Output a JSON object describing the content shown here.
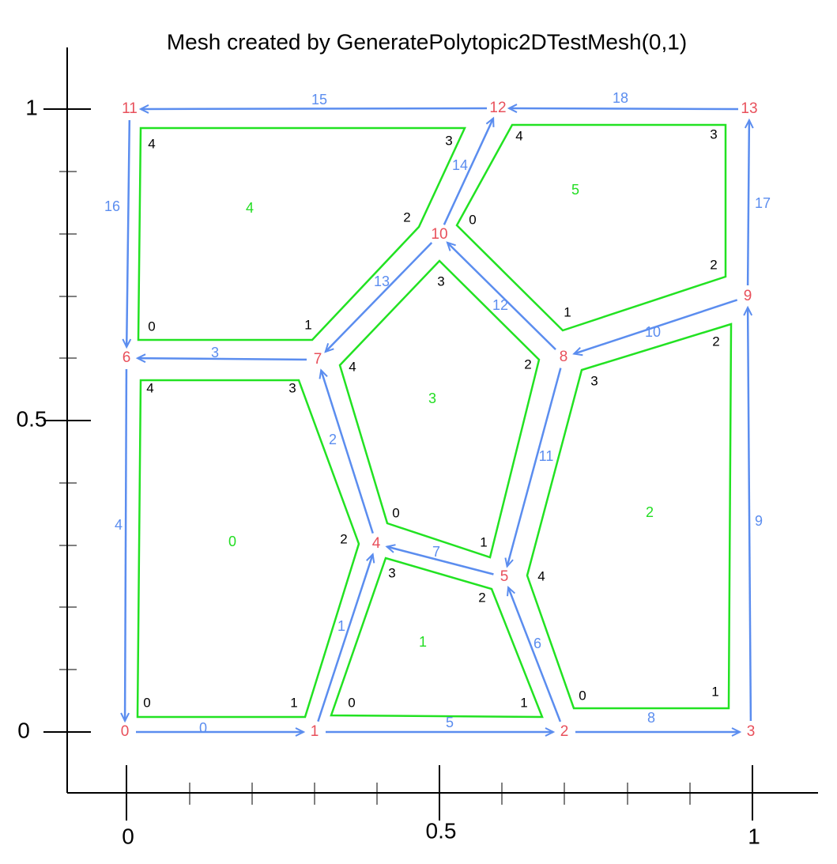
{
  "title": "Mesh created by GeneratePolytopic2DTestMesh(0,1)",
  "x_axis": {
    "ticks": [
      "0",
      "0.5",
      "1"
    ]
  },
  "y_axis": {
    "ticks": [
      "0",
      "0.5",
      "1"
    ]
  },
  "nodes": [
    {
      "label": "0"
    },
    {
      "label": "1"
    },
    {
      "label": "2"
    },
    {
      "label": "3"
    },
    {
      "label": "4"
    },
    {
      "label": "5"
    },
    {
      "label": "6"
    },
    {
      "label": "7"
    },
    {
      "label": "8"
    },
    {
      "label": "9"
    },
    {
      "label": "10"
    },
    {
      "label": "11"
    },
    {
      "label": "12"
    },
    {
      "label": "13"
    }
  ],
  "edges": [
    {
      "label": "0"
    },
    {
      "label": "1"
    },
    {
      "label": "2"
    },
    {
      "label": "3"
    },
    {
      "label": "4"
    },
    {
      "label": "5"
    },
    {
      "label": "6"
    },
    {
      "label": "7"
    },
    {
      "label": "8"
    },
    {
      "label": "9"
    },
    {
      "label": "10"
    },
    {
      "label": "11"
    },
    {
      "label": "12"
    },
    {
      "label": "13"
    },
    {
      "label": "14"
    },
    {
      "label": "15"
    },
    {
      "label": "16"
    },
    {
      "label": "17"
    },
    {
      "label": "18"
    }
  ],
  "elements": [
    {
      "label": "0",
      "vertex_labels": [
        "0",
        "1",
        "2",
        "3",
        "4"
      ]
    },
    {
      "label": "1",
      "vertex_labels": [
        "0",
        "1",
        "2",
        "3"
      ]
    },
    {
      "label": "2",
      "vertex_labels": [
        "0",
        "1",
        "2",
        "3",
        "4"
      ]
    },
    {
      "label": "3",
      "vertex_labels": [
        "0",
        "1",
        "2",
        "3",
        "4"
      ]
    },
    {
      "label": "4",
      "vertex_labels": [
        "0",
        "1",
        "2",
        "3",
        "4"
      ]
    },
    {
      "label": "5",
      "vertex_labels": [
        "0",
        "1",
        "2",
        "3",
        "4"
      ]
    }
  ]
}
